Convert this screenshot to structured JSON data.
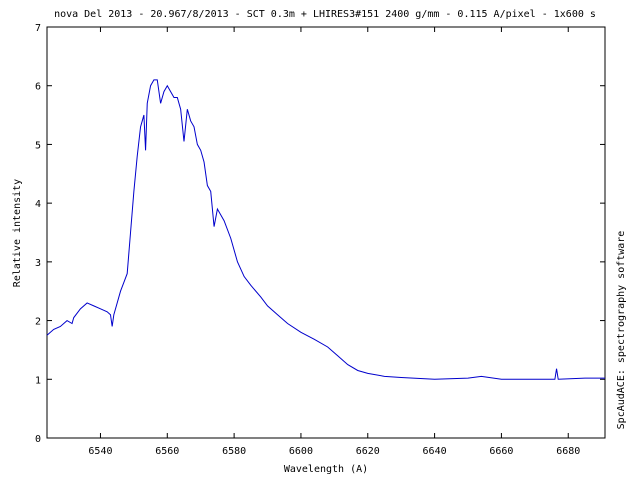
{
  "chart_data": {
    "type": "line",
    "title": "nova Del 2013 - 20.967/8/2013 - SCT 0.3m + LHIRES3#151 2400 g/mm - 0.115 A/pixel - 1x600 s",
    "xlabel": "Wavelength (A)",
    "ylabel": "Relative intensity",
    "side_note": "SpcAudACE: spectrography software",
    "xlim": [
      6524,
      6691
    ],
    "ylim": [
      0,
      7
    ],
    "xticks": [
      6540,
      6560,
      6580,
      6600,
      6620,
      6640,
      6660,
      6680
    ],
    "yticks": [
      0,
      1,
      2,
      3,
      4,
      5,
      6,
      7
    ],
    "grid": false,
    "series": [
      {
        "name": "spectrum",
        "color": "#0000cc",
        "x": [
          6524,
          6526,
          6528,
          6530,
          6531.5,
          6532,
          6534,
          6536,
          6538,
          6540,
          6542,
          6543,
          6543.5,
          6544,
          6545,
          6546,
          6547,
          6548,
          6549,
          6550,
          6551,
          6552,
          6553,
          6553.5,
          6554,
          6555,
          6556,
          6557,
          6558,
          6559,
          6560,
          6561,
          6562,
          6563,
          6564,
          6565,
          6566,
          6567,
          6568,
          6569,
          6570,
          6571,
          6572,
          6573,
          6574,
          6575,
          6577,
          6579,
          6581,
          6583,
          6585,
          6588,
          6590,
          6593,
          6596,
          6600,
          6604,
          6608,
          6611,
          6614,
          6617,
          6620,
          6625,
          6630,
          6640,
          6650,
          6654,
          6660,
          6670,
          6676,
          6676.5,
          6677,
          6685,
          6691
        ],
        "values": [
          1.75,
          1.85,
          1.9,
          2.0,
          1.95,
          2.05,
          2.2,
          2.3,
          2.25,
          2.2,
          2.15,
          2.1,
          1.9,
          2.1,
          2.3,
          2.5,
          2.65,
          2.8,
          3.5,
          4.2,
          4.8,
          5.3,
          5.5,
          4.9,
          5.7,
          6.0,
          6.1,
          6.1,
          5.7,
          5.9,
          6.0,
          5.9,
          5.8,
          5.8,
          5.6,
          5.05,
          5.6,
          5.4,
          5.3,
          5.0,
          4.9,
          4.7,
          4.3,
          4.2,
          3.6,
          3.9,
          3.7,
          3.4,
          3.0,
          2.75,
          2.6,
          2.4,
          2.25,
          2.1,
          1.95,
          1.8,
          1.68,
          1.55,
          1.4,
          1.25,
          1.15,
          1.1,
          1.05,
          1.03,
          1.0,
          1.02,
          1.05,
          1.0,
          1.0,
          1.0,
          1.18,
          1.0,
          1.02,
          1.02
        ]
      }
    ]
  }
}
